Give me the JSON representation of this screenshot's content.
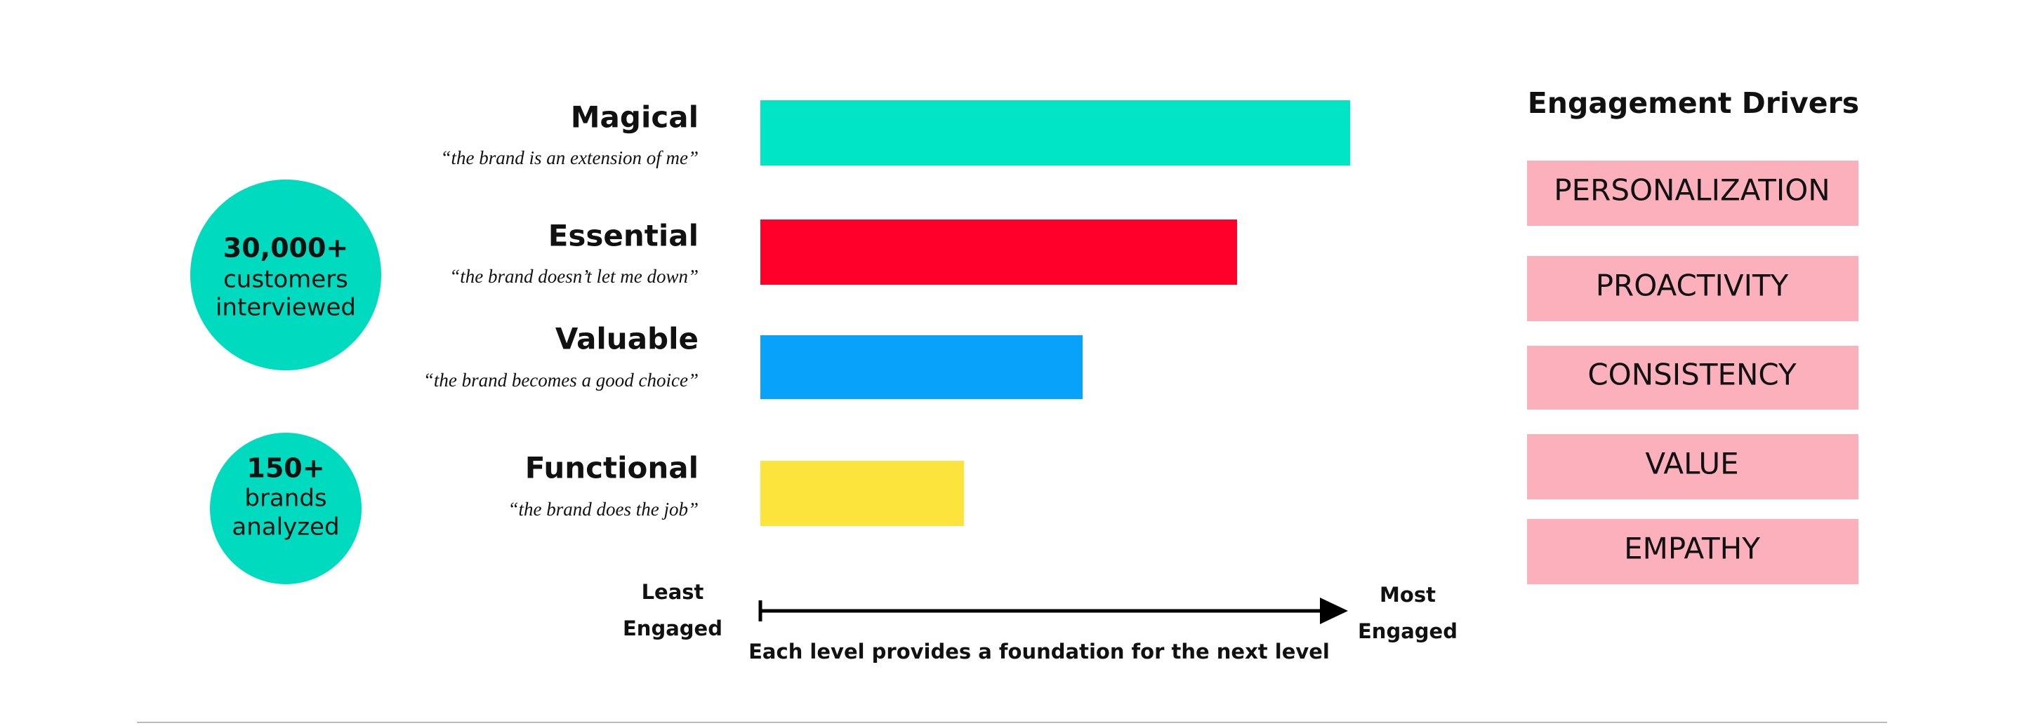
{
  "levels": [
    {
      "label": "Magical",
      "quote": "“the brand is an extension of me”"
    },
    {
      "label": "Essential",
      "quote": "“the brand doesn’t let me down”"
    },
    {
      "label": "Valuable",
      "quote": "“the brand becomes a good choice”"
    },
    {
      "label": "Functional",
      "quote": "“the brand does the job”"
    }
  ],
  "stats": [
    {
      "value": "30,000+",
      "line1": "customers",
      "line2": "interviewed"
    },
    {
      "value": "150+",
      "line1": "brands",
      "line2": "analyzed"
    }
  ],
  "axis": {
    "start_line1": "Least",
    "start_line2": "Engaged",
    "end_line1": "Most",
    "end_line2": "Engaged",
    "caption": "Each level provides a foundation for the next level"
  },
  "drivers": {
    "title": "Engagement Drivers",
    "items": [
      "PERSONALIZATION",
      "PROACTIVITY",
      "CONSISTENCY",
      "VALUE",
      "EMPATHY"
    ]
  }
}
